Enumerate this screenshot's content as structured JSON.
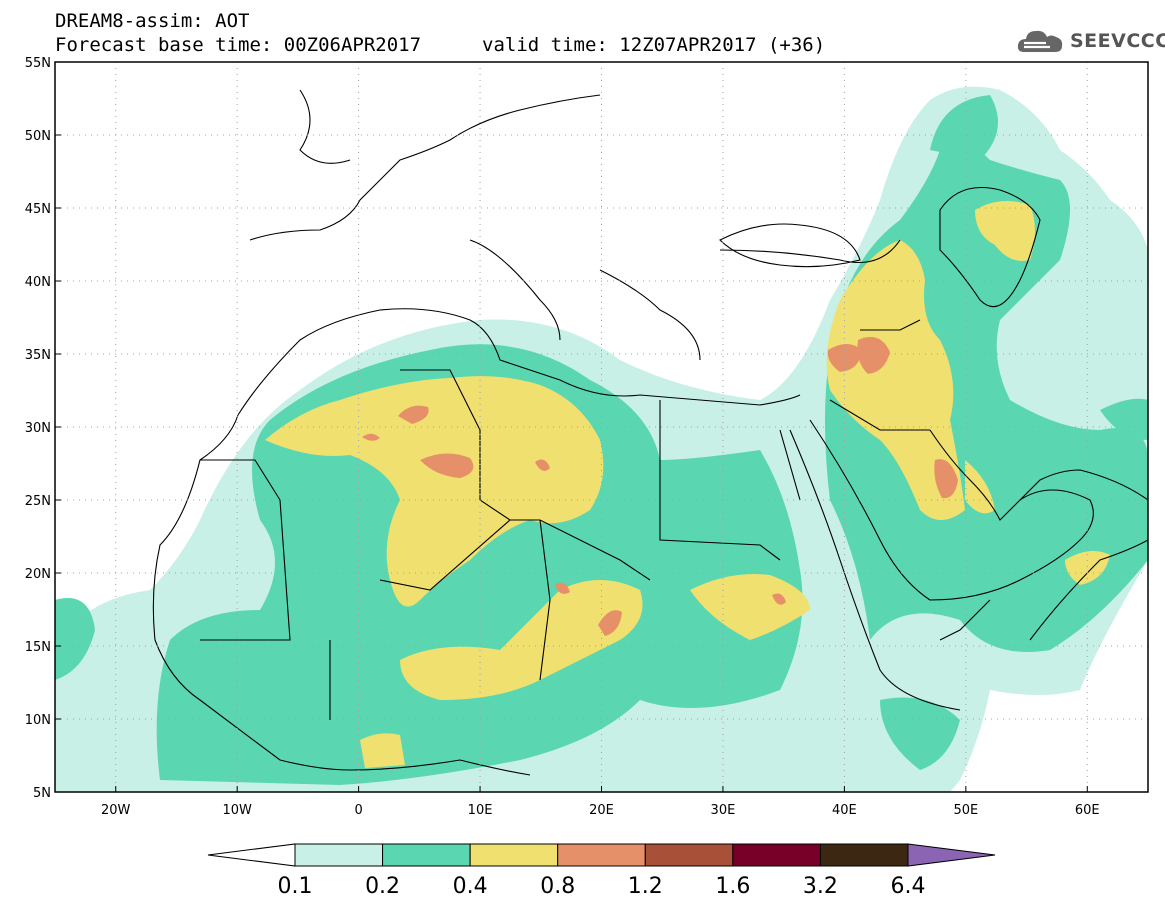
{
  "header": {
    "line1": "DREAM8-assim: AOT",
    "line2": "Forecast base time: 00Z06APR2017",
    "line3": "valid time: 12Z07APR2017 (+36)"
  },
  "logo": {
    "text": "SEEVCCC",
    "icon": "cloud-icon"
  },
  "map": {
    "lon_range": [
      -25,
      65
    ],
    "lat_range": [
      5,
      55
    ],
    "lat_ticks": [
      {
        "value": 55,
        "label": "55N"
      },
      {
        "value": 50,
        "label": "50N"
      },
      {
        "value": 45,
        "label": "45N"
      },
      {
        "value": 40,
        "label": "40N"
      },
      {
        "value": 35,
        "label": "35N"
      },
      {
        "value": 30,
        "label": "30N"
      },
      {
        "value": 25,
        "label": "25N"
      },
      {
        "value": 20,
        "label": "20N"
      },
      {
        "value": 15,
        "label": "15N"
      },
      {
        "value": 10,
        "label": "10N"
      },
      {
        "value": 5,
        "label": "5N"
      }
    ],
    "lon_ticks": [
      {
        "value": -20,
        "label": "20W"
      },
      {
        "value": -10,
        "label": "10W"
      },
      {
        "value": 0,
        "label": "0"
      },
      {
        "value": 10,
        "label": "10E"
      },
      {
        "value": 20,
        "label": "20E"
      },
      {
        "value": 30,
        "label": "30E"
      },
      {
        "value": 40,
        "label": "40E"
      },
      {
        "value": 50,
        "label": "50E"
      },
      {
        "value": 60,
        "label": "60E"
      }
    ],
    "grid": true
  },
  "colorbar": {
    "boundaries": [
      "0.1",
      "0.2",
      "0.4",
      "0.8",
      "1.2",
      "1.6",
      "3.2",
      "6.4"
    ],
    "colors": [
      "#c8f0e6",
      "#5ad7b0",
      "#f0e070",
      "#e6906a",
      "#a85038",
      "#780028",
      "#3c2812"
    ],
    "under_color": "#ffffff",
    "over_color": "#8c64b4"
  }
}
